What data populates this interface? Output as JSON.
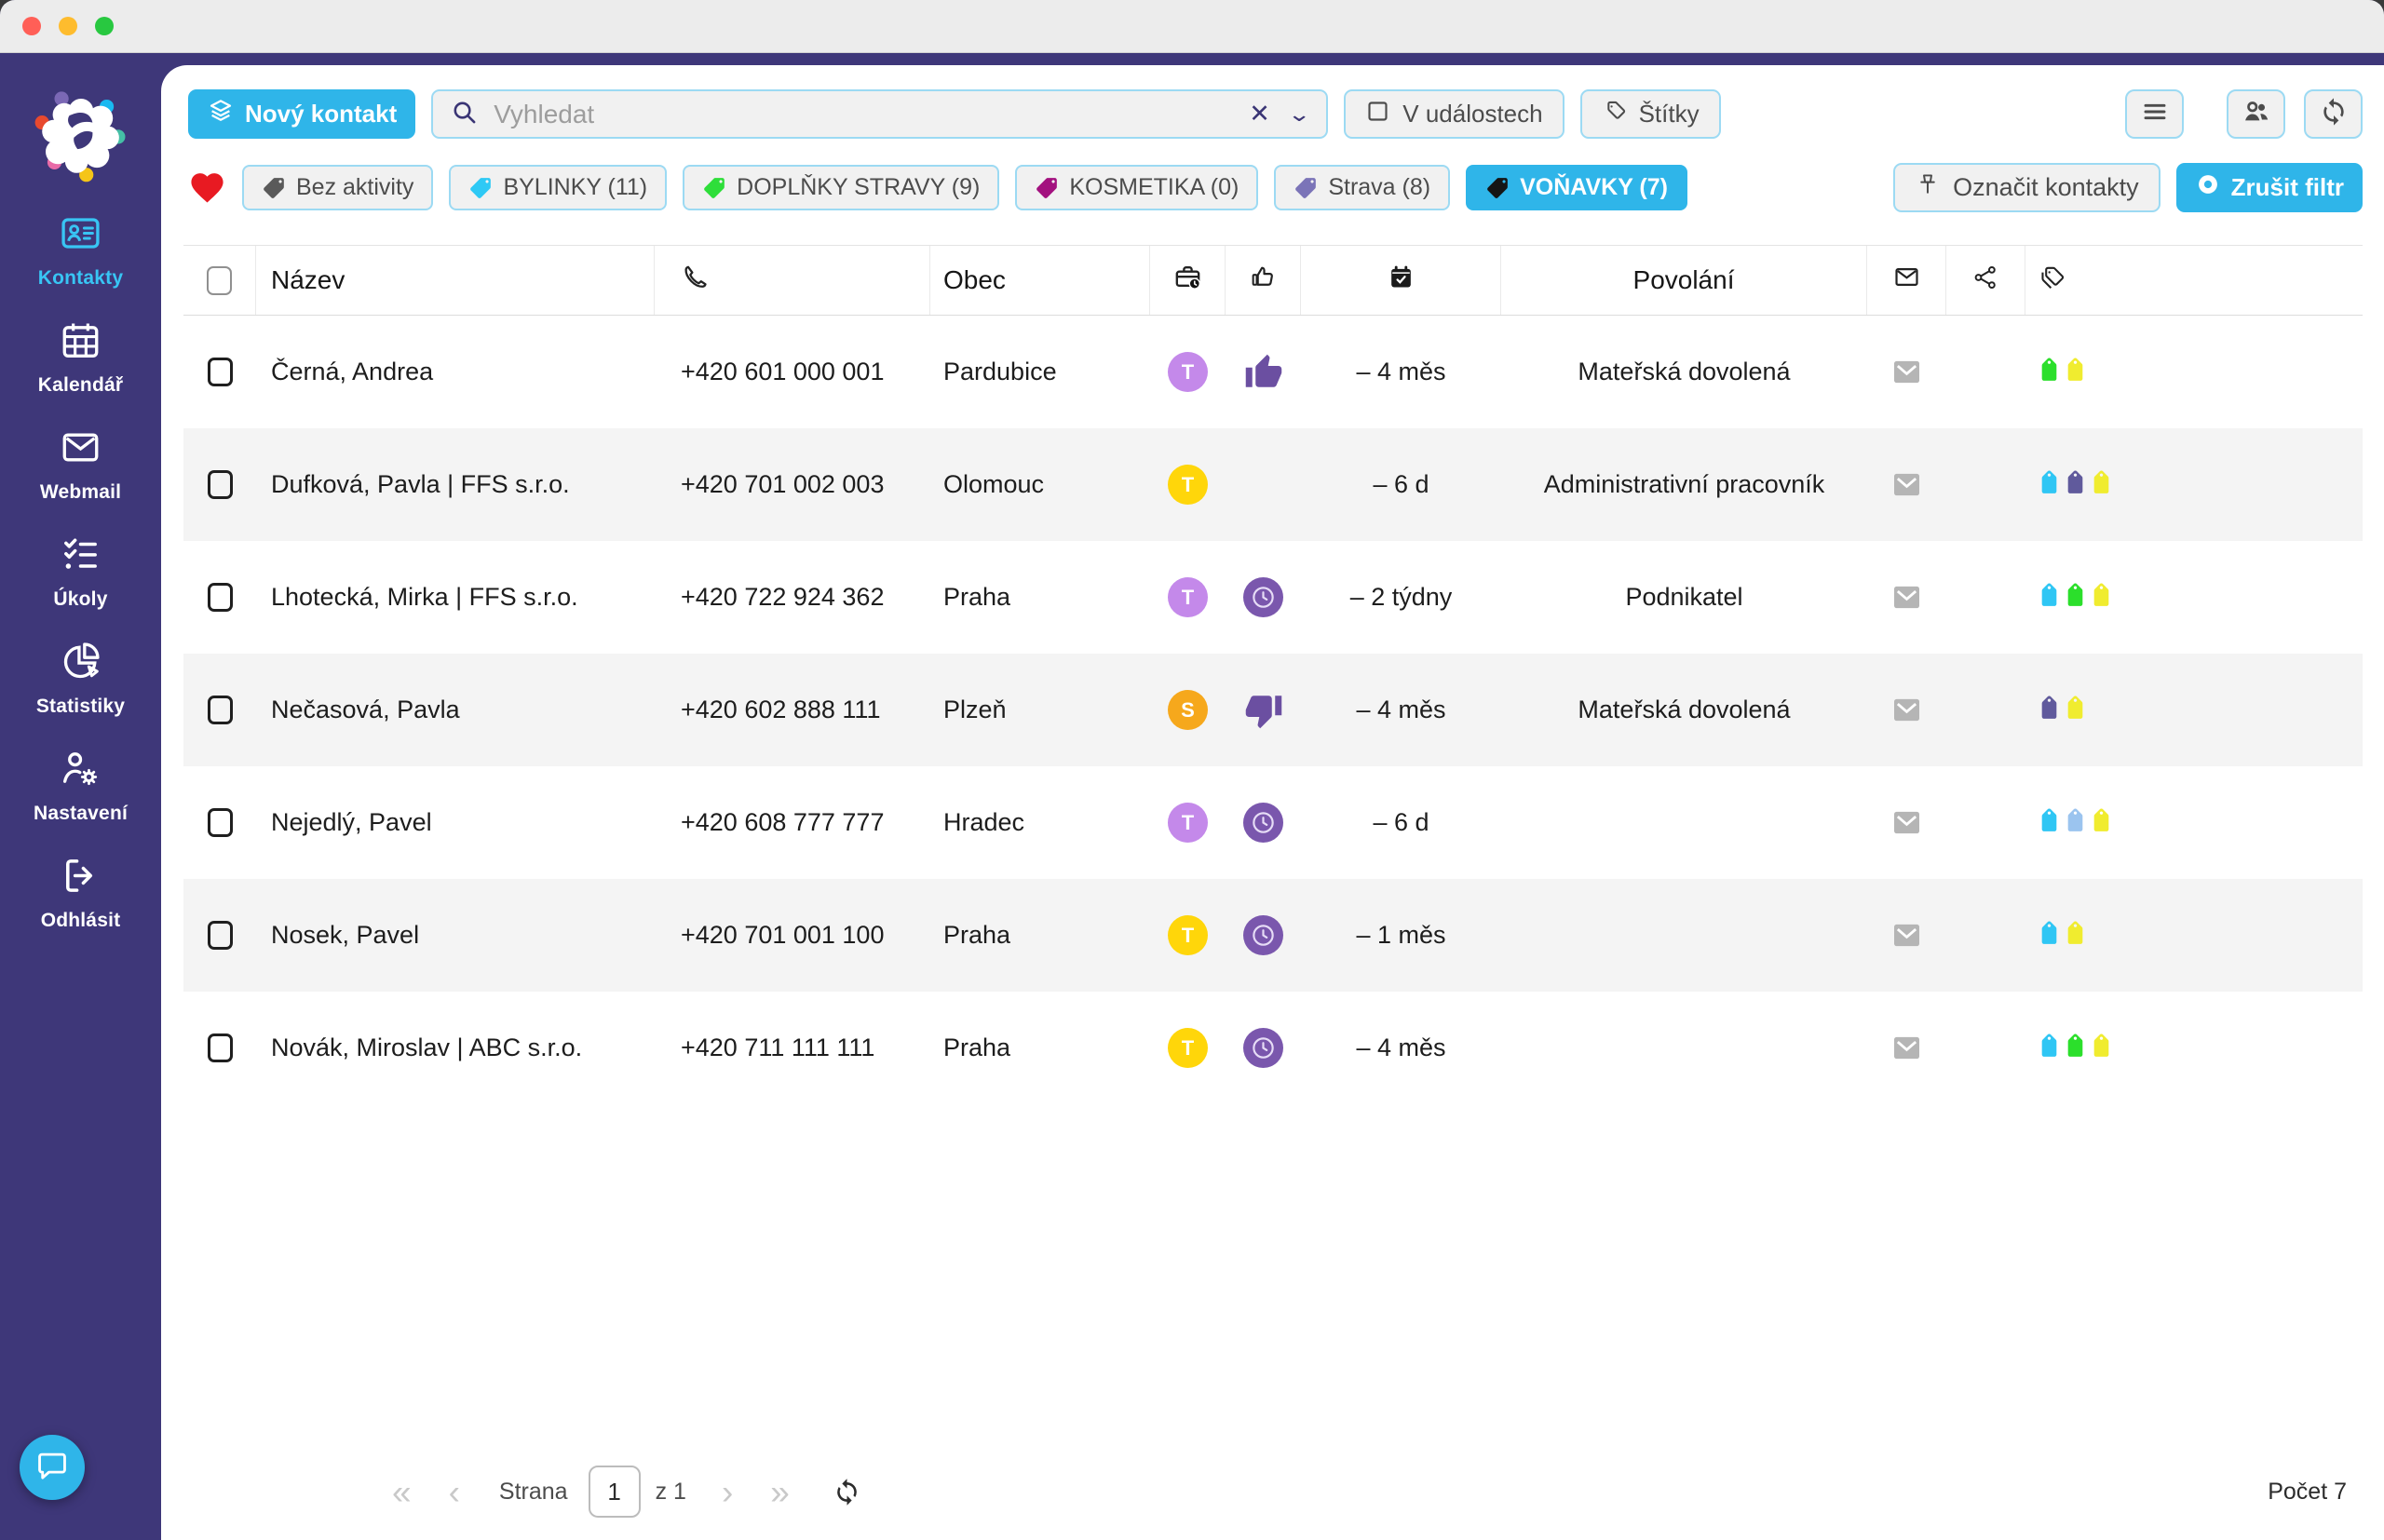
{
  "colors": {
    "accent": "#2fb5e9",
    "sidebar_bg": "#3e3779",
    "titlebar_bg": "#ececec",
    "zebra_row": "#f4f4f4",
    "traffic_lights": [
      "#ff5f57",
      "#febc2e",
      "#28c840"
    ],
    "heart": "#e81a22"
  },
  "sidebar": {
    "items": [
      {
        "id": "kontakty",
        "label": "Kontakty",
        "icon": "contact-card",
        "active": true
      },
      {
        "id": "kalendar",
        "label": "Kalendář",
        "icon": "calendar",
        "active": false
      },
      {
        "id": "webmail",
        "label": "Webmail",
        "icon": "envelope",
        "active": false
      },
      {
        "id": "ukoly",
        "label": "Úkoly",
        "icon": "checklist",
        "active": false
      },
      {
        "id": "statistiky",
        "label": "Statistiky",
        "icon": "pie-chart",
        "active": false
      },
      {
        "id": "nastaveni",
        "label": "Nastavení",
        "icon": "user-gear",
        "active": false
      },
      {
        "id": "odhlasit",
        "label": "Odhlásit",
        "icon": "logout",
        "active": false
      }
    ]
  },
  "toolbar": {
    "new_contact_label": "Nový kontakt",
    "search_placeholder": "Vyhledat",
    "in_events_label": "V událostech",
    "tags_label": "Štítky"
  },
  "filters": {
    "chips": [
      {
        "label": "Bez aktivity",
        "tag_color": "#5a5a5a",
        "active": false
      },
      {
        "label": "BYLINKY (11)",
        "tag_color": "#2ec9f5",
        "active": false
      },
      {
        "label": "DOPLŇKY STRAVY (9)",
        "tag_color": "#2ede3a",
        "active": false
      },
      {
        "label": "KOSMETIKA (0)",
        "tag_color": "#a3117f",
        "active": false
      },
      {
        "label": "Strava (8)",
        "tag_color": "#7b74b8",
        "active": false
      },
      {
        "label": "VOŇAVKY (7)",
        "tag_color": "#151515",
        "active": true
      }
    ],
    "mark_contacts_label": "Označit kontakty",
    "clear_filter_label": "Zrušit filtr"
  },
  "table": {
    "columns": {
      "name": "Název",
      "city": "Obec",
      "occupation": "Povolání"
    },
    "tag_palette": {
      "cyan": "#2fc6f4",
      "green": "#2bdf2b",
      "yellow": "#f0ec2f",
      "blue": "#9bc4ef",
      "purple": "#605a9c"
    },
    "rows": [
      {
        "name": "Černá, Andrea",
        "phone": "+420 601 000 001",
        "city": "Pardubice",
        "badge": {
          "letter": "T",
          "color": "#c489ea"
        },
        "status": "thumb-up",
        "activity": "– 4 měs",
        "occupation": "Mateřská dovolená",
        "tags": [
          "green",
          "yellow"
        ]
      },
      {
        "name": "Dufková, Pavla | FFS s.r.o.",
        "phone": "+420 701 002 003",
        "city": "Olomouc",
        "badge": {
          "letter": "T",
          "color": "#ffd60a"
        },
        "status": "none",
        "activity": "– 6 d",
        "occupation": "Administrativní pracovník",
        "tags": [
          "cyan",
          "purple",
          "yellow"
        ]
      },
      {
        "name": "Lhotecká, Mirka | FFS s.r.o.",
        "phone": "+420 722 924 362",
        "city": "Praha",
        "badge": {
          "letter": "T",
          "color": "#c489ea"
        },
        "status": "clock",
        "activity": "– 2 týdny",
        "occupation": "Podnikatel",
        "tags": [
          "cyan",
          "green",
          "yellow"
        ]
      },
      {
        "name": "Nečasová, Pavla",
        "phone": "+420 602 888 111",
        "city": "Plzeň",
        "badge": {
          "letter": "S",
          "color": "#f6a81c"
        },
        "status": "thumb-down",
        "activity": "– 4 měs",
        "occupation": "Mateřská dovolená",
        "tags": [
          "purple",
          "yellow"
        ]
      },
      {
        "name": "Nejedlý, Pavel",
        "phone": "+420 608 777 777",
        "city": "Hradec",
        "badge": {
          "letter": "T",
          "color": "#c489ea"
        },
        "status": "clock",
        "activity": "– 6 d",
        "occupation": "",
        "tags": [
          "cyan",
          "blue",
          "yellow"
        ]
      },
      {
        "name": "Nosek, Pavel",
        "phone": "+420 701 001 100",
        "city": "Praha",
        "badge": {
          "letter": "T",
          "color": "#ffd60a"
        },
        "status": "clock",
        "activity": "– 1 měs",
        "occupation": "",
        "tags": [
          "cyan",
          "yellow"
        ]
      },
      {
        "name": "Novák, Miroslav | ABC s.r.o.",
        "phone": "+420 711 111 111",
        "city": "Praha",
        "badge": {
          "letter": "T",
          "color": "#ffd60a"
        },
        "status": "clock",
        "activity": "– 4 měs",
        "occupation": "",
        "tags": [
          "cyan",
          "green",
          "yellow"
        ]
      }
    ]
  },
  "pagination": {
    "strana_label": "Strana",
    "page": "1",
    "of_label": "z 1",
    "count_label": "Počet 7"
  }
}
